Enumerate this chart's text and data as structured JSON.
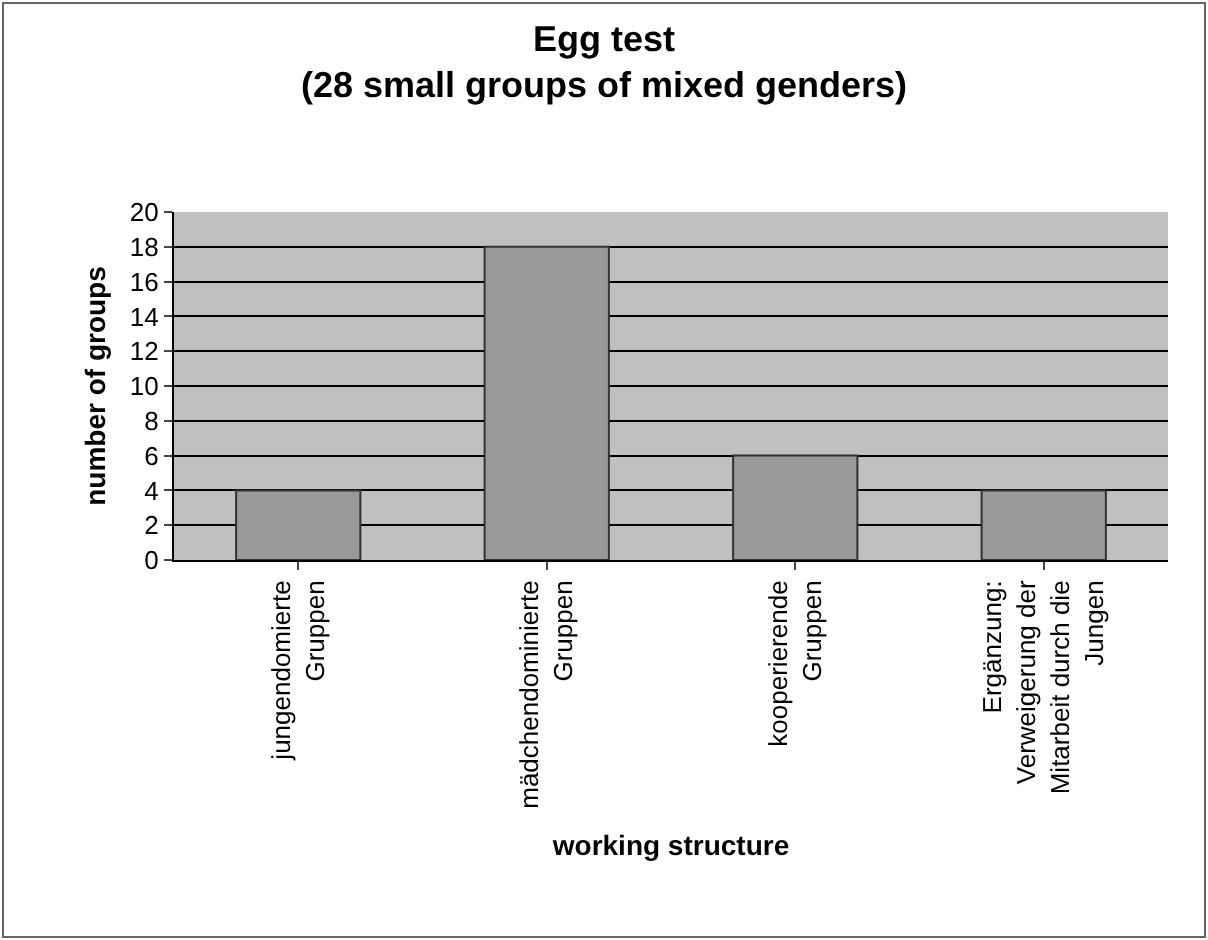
{
  "chart_data": {
    "type": "bar",
    "title": "Egg test\n(28 small groups of mixed genders)",
    "xlabel": "working structure",
    "ylabel": "number of groups",
    "categories": [
      "jungendomierte Gruppen",
      "mädchendominierte Gruppen",
      "kooperierende Gruppen",
      "Ergänzung: Verweigerung der Mitarbeit durch die Jungen"
    ],
    "values": [
      4,
      18,
      6,
      4
    ],
    "color": "#999999",
    "ylim": [
      0,
      20
    ],
    "yticks": [
      0,
      2,
      4,
      6,
      8,
      10,
      12,
      14,
      16,
      18,
      20
    ],
    "grid": "y"
  }
}
